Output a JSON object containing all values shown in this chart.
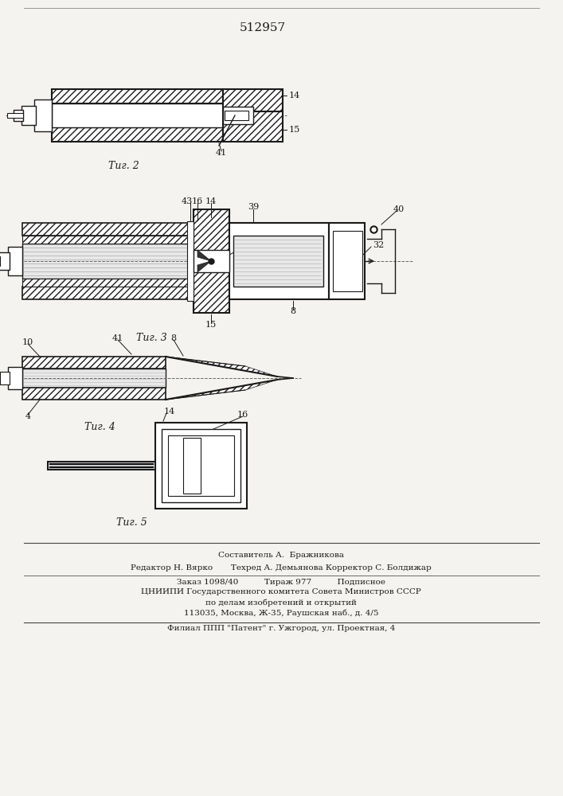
{
  "title": "512957",
  "background": "#f5f3ef",
  "line_color": "#1a1a1a",
  "fig2_label": "Τиг. 2",
  "fig3_label": "Τиг. 3",
  "fig4_label": "Τиг. 4",
  "fig5_label": "Τиг. 5",
  "footer_lines": [
    "Составитель А.  Бражникова",
    "Редактор Н. Вярко       Техред А. Демьянова Корректор С. Болдижар",
    "Заказ 1098/40          Тираж 977          Подписное",
    "ЦНИИПИ Государственного комитета Совета Министров СССР",
    "по делам изобретений и открытий",
    "113035, Москва, Ж-35, Раушская наб., д. 4/5",
    "Филиал ППП \"Патент\" г. Ужгород, ул. Проектная, 4"
  ]
}
